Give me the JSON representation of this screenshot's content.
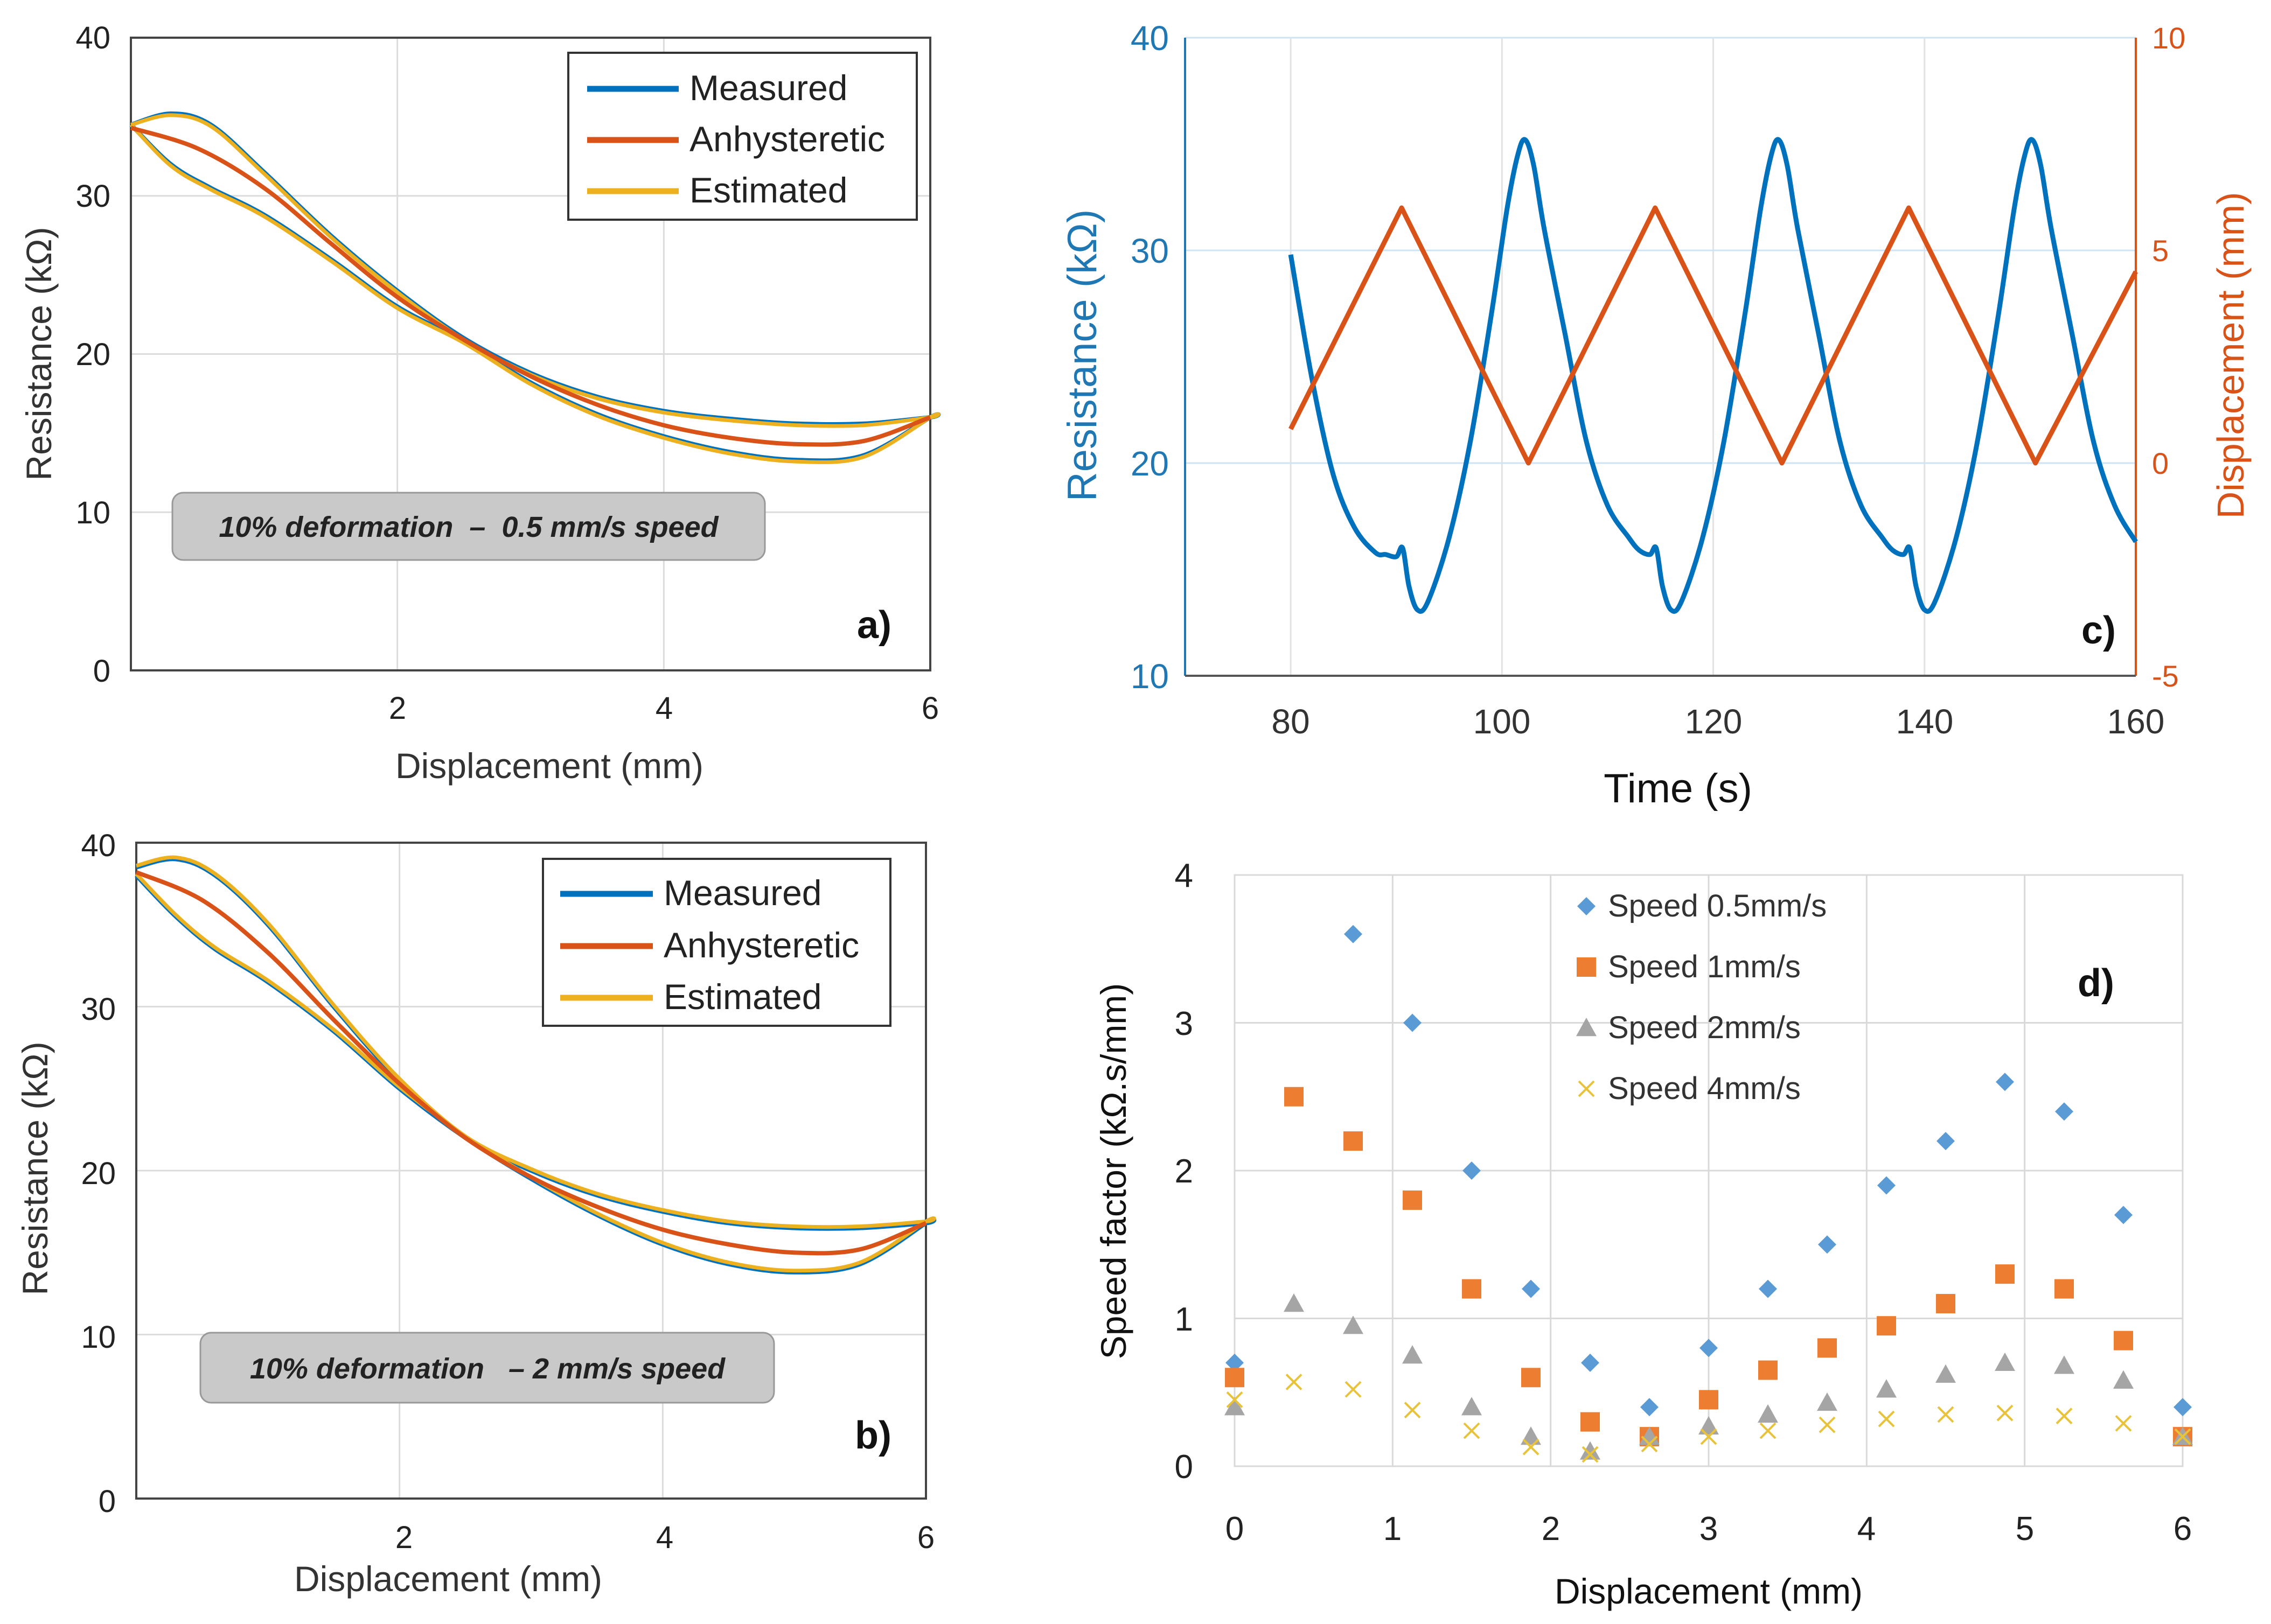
{
  "colors": {
    "measured": "#0072BD",
    "anhysteretic": "#D95319",
    "estimated": "#EDB120",
    "axis_blue": "#1f77b4",
    "axis_orange": "#D95319",
    "d_s1": "#5B9BD5",
    "d_s2": "#ED7D31",
    "d_s3": "#A5A5A5",
    "d_s4": "#E8C33A"
  },
  "chart_data": [
    {
      "panel": "a)",
      "type": "line",
      "xlabel": "Displacement (mm)",
      "ylabel": "Resistance (kΩ)",
      "xlim": [
        0,
        6
      ],
      "ylim": [
        0,
        40
      ],
      "xticks": [
        "2",
        "4",
        "6"
      ],
      "yticks": [
        "0",
        "10",
        "20",
        "30",
        "40"
      ],
      "annotation": "10% deformation  –  0.5 mm/s speed",
      "legend": [
        "Measured",
        "Anhysteretic",
        "Estimated"
      ],
      "series": [
        {
          "name": "Measured",
          "upper": {
            "x": [
              0,
              0.3,
              0.6,
              1.0,
              1.5,
              2.0,
              2.5,
              3.0,
              3.5,
              4.0,
              4.5,
              5.0,
              5.5,
              6.0
            ],
            "y": [
              34.5,
              35.2,
              34.5,
              31.5,
              27.5,
              24.0,
              21.0,
              18.8,
              17.3,
              16.4,
              15.9,
              15.6,
              15.6,
              16.0
            ]
          },
          "lower": {
            "x": [
              0,
              0.3,
              0.6,
              1.0,
              1.5,
              2.0,
              2.5,
              3.0,
              3.5,
              4.0,
              4.5,
              5.0,
              5.5,
              6.0
            ],
            "y": [
              34.5,
              32.0,
              30.5,
              28.8,
              26.0,
              23.0,
              20.8,
              18.2,
              16.2,
              14.8,
              13.8,
              13.3,
              13.6,
              16.0
            ]
          }
        },
        {
          "name": "Anhysteretic",
          "x": [
            0,
            0.5,
            1.0,
            1.5,
            2.0,
            2.5,
            3.0,
            3.5,
            4.0,
            4.5,
            5.0,
            5.5,
            6.0
          ],
          "y": [
            34.3,
            33.0,
            30.5,
            27.0,
            23.6,
            20.9,
            18.6,
            16.8,
            15.5,
            14.7,
            14.3,
            14.5,
            16.0
          ]
        },
        {
          "name": "Estimated",
          "upper": {
            "x": [
              0,
              0.3,
              0.6,
              1.0,
              1.5,
              2.0,
              2.5,
              3.0,
              3.5,
              4.0,
              4.5,
              5.0,
              5.5,
              6.0
            ],
            "y": [
              34.5,
              35.1,
              34.4,
              31.4,
              27.4,
              23.9,
              20.9,
              18.7,
              17.2,
              16.3,
              15.8,
              15.5,
              15.5,
              16.0
            ]
          },
          "lower": {
            "x": [
              0,
              0.3,
              0.6,
              1.0,
              1.5,
              2.0,
              2.5,
              3.0,
              3.5,
              4.0,
              4.5,
              5.0,
              5.5,
              6.0
            ],
            "y": [
              34.5,
              31.9,
              30.4,
              28.7,
              25.9,
              22.9,
              20.7,
              18.1,
              16.1,
              14.7,
              13.7,
              13.2,
              13.5,
              16.0
            ]
          }
        }
      ]
    },
    {
      "panel": "b)",
      "type": "line",
      "xlabel": "Displacement (mm)",
      "ylabel": "Resistance (kΩ)",
      "xlim": [
        0,
        6
      ],
      "ylim": [
        0,
        40
      ],
      "xticks": [
        "2",
        "4",
        "6"
      ],
      "yticks": [
        "0",
        "10",
        "20",
        "30",
        "40"
      ],
      "annotation": "10% deformation   – 2 mm/s speed",
      "legend": [
        "Measured",
        "Anhysteretic",
        "Estimated"
      ],
      "series": [
        {
          "name": "Measured",
          "upper": {
            "x": [
              0,
              0.3,
              0.6,
              1.0,
              1.5,
              2.0,
              2.5,
              3.0,
              3.5,
              4.0,
              4.5,
              5.0,
              5.5,
              6.0
            ],
            "y": [
              38.5,
              39.0,
              38.0,
              35.0,
              30.0,
              25.5,
              22.0,
              20.0,
              18.5,
              17.5,
              16.8,
              16.5,
              16.5,
              16.8
            ]
          },
          "lower": {
            "x": [
              0,
              0.3,
              0.6,
              1.0,
              1.5,
              2.0,
              2.5,
              3.0,
              3.5,
              4.0,
              4.5,
              5.0,
              5.5,
              6.0
            ],
            "y": [
              38.0,
              35.5,
              33.5,
              31.5,
              28.5,
              25.0,
              22.0,
              19.5,
              17.3,
              15.5,
              14.3,
              13.8,
              14.3,
              16.8
            ]
          }
        },
        {
          "name": "Anhysteretic",
          "x": [
            0,
            0.5,
            1.0,
            1.5,
            2.0,
            2.5,
            3.0,
            3.5,
            4.0,
            4.5,
            5.0,
            5.5,
            6.0
          ],
          "y": [
            38.2,
            36.5,
            33.3,
            29.2,
            25.3,
            22.0,
            19.6,
            17.8,
            16.4,
            15.5,
            15.0,
            15.2,
            16.8
          ]
        },
        {
          "name": "Estimated",
          "upper": {
            "x": [
              0,
              0.3,
              0.6,
              1.0,
              1.5,
              2.0,
              2.5,
              3.0,
              3.5,
              4.0,
              4.5,
              5.0,
              5.5,
              6.0
            ],
            "y": [
              38.6,
              39.1,
              38.1,
              35.1,
              30.1,
              25.6,
              22.1,
              20.1,
              18.6,
              17.6,
              16.9,
              16.6,
              16.6,
              16.9
            ]
          },
          "lower": {
            "x": [
              0,
              0.3,
              0.6,
              1.0,
              1.5,
              2.0,
              2.5,
              3.0,
              3.5,
              4.0,
              4.5,
              5.0,
              5.5,
              6.0
            ],
            "y": [
              38.1,
              35.6,
              33.6,
              31.6,
              28.6,
              25.1,
              22.1,
              19.6,
              17.4,
              15.6,
              14.4,
              13.9,
              14.4,
              16.9
            ]
          }
        }
      ]
    },
    {
      "panel": "c)",
      "type": "line",
      "xlabel": "Time (s)",
      "ylabel": "Resistance (kΩ)",
      "y2label": "Displacement (mm)",
      "xlim": [
        70,
        160
      ],
      "ylim": [
        10,
        40
      ],
      "y2lim": [
        -5,
        10
      ],
      "xticks": [
        "80",
        "100",
        "120",
        "140",
        "160"
      ],
      "yticks": [
        "10",
        "20",
        "30",
        "40"
      ],
      "y2ticks": [
        "-5",
        "0",
        "5",
        "10"
      ],
      "series": [
        {
          "name": "Resistance",
          "axis": "left",
          "x": [
            80,
            82,
            84,
            86,
            88,
            89,
            90,
            90.6,
            91.2,
            92,
            93,
            95,
            97,
            99,
            100.5,
            101.5,
            102.2,
            103,
            104,
            106,
            108,
            110,
            112,
            113,
            114,
            114.6,
            115.2,
            116,
            117,
            119,
            121,
            123,
            124.5,
            125.5,
            126.2,
            127,
            128,
            130,
            132,
            134,
            136,
            137,
            138,
            138.6,
            139.2,
            140,
            141,
            143,
            145,
            147,
            148.5,
            149.5,
            150.2,
            151,
            152,
            154,
            156,
            158,
            160
          ],
          "y": [
            29.8,
            24.0,
            19.5,
            17.0,
            15.8,
            15.7,
            15.6,
            16.0,
            14.2,
            13.1,
            13.5,
            16.5,
            21.0,
            27.0,
            32.0,
            34.5,
            35.2,
            34.0,
            31.0,
            26.0,
            21.0,
            18.0,
            16.5,
            15.9,
            15.7,
            16.0,
            14.2,
            13.1,
            13.5,
            16.5,
            21.0,
            27.0,
            32.0,
            34.5,
            35.2,
            34.0,
            31.0,
            26.0,
            21.0,
            18.0,
            16.5,
            15.9,
            15.7,
            16.0,
            14.2,
            13.1,
            13.5,
            16.5,
            21.0,
            27.0,
            32.0,
            34.5,
            35.2,
            34.0,
            31.0,
            26.0,
            21.0,
            18.0,
            16.3
          ]
        },
        {
          "name": "Displacement",
          "axis": "right",
          "x": [
            80,
            90.5,
            102.5,
            114.5,
            126.5,
            138.5,
            150.5,
            160
          ],
          "y": [
            0.8,
            6.0,
            0.0,
            6.0,
            0.0,
            6.0,
            0.0,
            4.5
          ]
        }
      ]
    },
    {
      "panel": "d)",
      "type": "scatter",
      "xlabel": "Displacement (mm)",
      "ylabel": "Speed factor (kΩ.s/mm)",
      "xlim": [
        0,
        6
      ],
      "ylim": [
        0,
        4
      ],
      "xticks": [
        "0",
        "1",
        "2",
        "3",
        "4",
        "5",
        "6"
      ],
      "yticks": [
        "0",
        "1",
        "2",
        "3",
        "4"
      ],
      "x": [
        0,
        0.375,
        0.75,
        1.125,
        1.5,
        1.875,
        2.25,
        2.625,
        3.0,
        3.375,
        3.75,
        4.125,
        4.5,
        4.875,
        5.25,
        5.625,
        6.0
      ],
      "series": [
        {
          "name": "Speed 0.5mm/s",
          "marker": "diamond",
          "values": [
            0.7,
            null,
            3.6,
            3.0,
            2.0,
            1.2,
            0.7,
            0.4,
            0.8,
            1.2,
            1.5,
            1.9,
            2.2,
            2.6,
            2.4,
            1.7,
            0.4
          ]
        },
        {
          "name": "Speed 1mm/s",
          "marker": "square",
          "values": [
            0.6,
            2.5,
            2.2,
            1.8,
            1.2,
            0.6,
            0.3,
            0.2,
            0.45,
            0.65,
            0.8,
            0.95,
            1.1,
            1.3,
            1.2,
            0.85,
            0.2
          ]
        },
        {
          "name": "Speed 2mm/s",
          "marker": "triangle",
          "values": [
            0.4,
            1.1,
            0.95,
            0.75,
            0.4,
            0.2,
            0.1,
            0.2,
            0.27,
            0.35,
            0.43,
            0.52,
            0.62,
            0.7,
            0.68,
            0.58,
            0.2
          ]
        },
        {
          "name": "Speed 4mm/s",
          "marker": "x",
          "values": [
            0.45,
            0.57,
            0.52,
            0.38,
            0.24,
            0.13,
            0.08,
            0.15,
            0.2,
            0.24,
            0.28,
            0.32,
            0.35,
            0.36,
            0.34,
            0.29,
            0.2
          ]
        }
      ]
    }
  ]
}
